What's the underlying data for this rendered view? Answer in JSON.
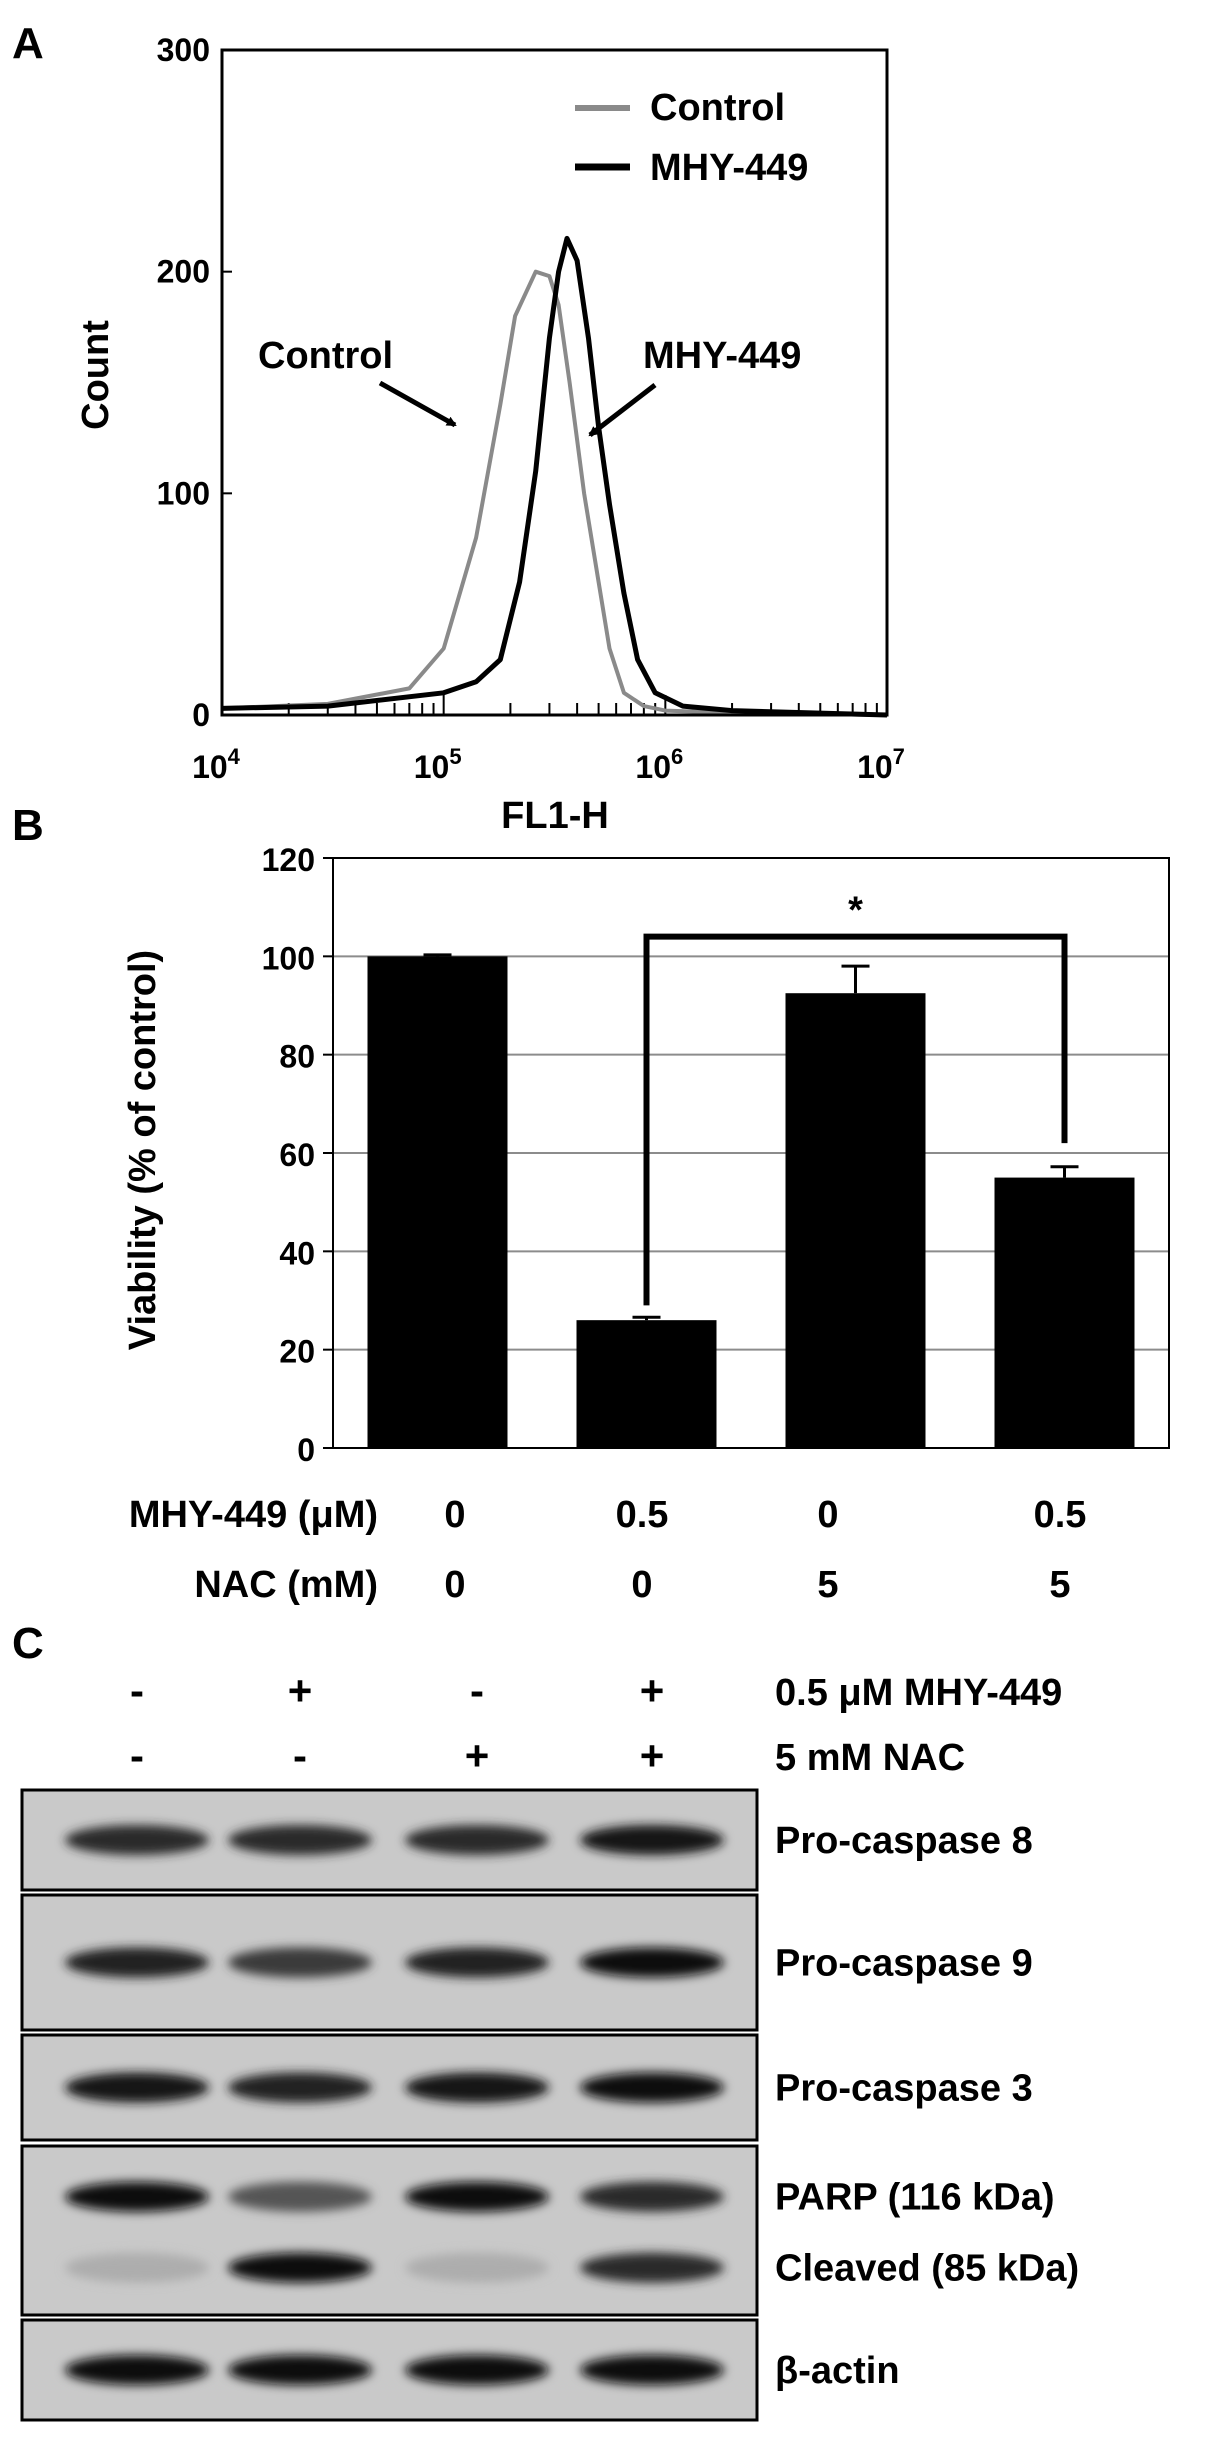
{
  "panels": {
    "a": {
      "letter": "A"
    },
    "b": {
      "letter": "B"
    },
    "c": {
      "letter": "C"
    }
  },
  "chart_data": [
    {
      "type": "line",
      "xlabel": "FL1-H",
      "ylabel": "Count",
      "x_scale": "log",
      "xlim": [
        10000,
        10000000
      ],
      "ylim": [
        0,
        300
      ],
      "x_ticks": [
        {
          "base": "10",
          "exp": "4"
        },
        {
          "base": "10",
          "exp": "5"
        },
        {
          "base": "10",
          "exp": "6"
        },
        {
          "base": "10",
          "exp": "7"
        }
      ],
      "y_ticks": [
        "0",
        "100",
        "200",
        "300"
      ],
      "legend_position": "top-right",
      "series": [
        {
          "name": "Control",
          "color": "#8a8a8a",
          "x": [
            10000,
            30000,
            70000,
            100000,
            140000,
            180000,
            210000,
            260000,
            300000,
            330000,
            370000,
            430000,
            500000,
            560000,
            650000,
            800000,
            1000000,
            2000000,
            10000000
          ],
          "y": [
            3,
            5,
            12,
            30,
            80,
            140,
            180,
            200,
            198,
            185,
            150,
            100,
            60,
            30,
            10,
            4,
            2,
            1,
            0
          ]
        },
        {
          "name": "MHY-449",
          "color": "#000000",
          "x": [
            10000,
            30000,
            100000,
            140000,
            180000,
            220000,
            260000,
            300000,
            330000,
            360000,
            400000,
            450000,
            500000,
            560000,
            650000,
            750000,
            900000,
            1200000,
            2000000,
            10000000
          ],
          "y": [
            3,
            4,
            10,
            15,
            25,
            60,
            110,
            170,
            200,
            215,
            205,
            170,
            130,
            95,
            55,
            25,
            10,
            4,
            2,
            0
          ]
        }
      ],
      "annotations": [
        {
          "text": "Control",
          "target": "Control"
        },
        {
          "text": "MHY-449",
          "target": "MHY-449"
        }
      ]
    },
    {
      "type": "bar",
      "ylabel": "Viability (% of control)",
      "ylim": [
        0,
        120
      ],
      "y_ticks": [
        "0",
        "20",
        "40",
        "60",
        "80",
        "100",
        "120"
      ],
      "grid": true,
      "bar_color": "#000000",
      "values": [
        100,
        26,
        92.5,
        55
      ],
      "errors": [
        0.3,
        0.6,
        5.5,
        2.2
      ],
      "rows": [
        {
          "label": "MHY-449 (μM)",
          "cells": [
            "0",
            "0.5",
            "0",
            "0.5"
          ]
        },
        {
          "label": "NAC (mM)",
          "cells": [
            "0",
            "0",
            "5",
            "5"
          ]
        }
      ],
      "significance": {
        "from_bar": 1,
        "to_bar": 3,
        "label": "*"
      }
    }
  ],
  "blot": {
    "treatment_rows": [
      {
        "label": "0.5 μM MHY-449",
        "signs": [
          "-",
          "+",
          "-",
          "+"
        ]
      },
      {
        "label": "5 mM NAC",
        "signs": [
          "-",
          "-",
          "+",
          "+"
        ]
      }
    ],
    "strips": [
      {
        "labels": [
          "Pro-caspase 8"
        ],
        "bands": [
          [
            0.85,
            0.85,
            0.85,
            0.95
          ]
        ]
      },
      {
        "labels": [
          "Pro-caspase 9"
        ],
        "bands": [
          [
            0.9,
            0.75,
            0.9,
            1.0
          ]
        ]
      },
      {
        "labels": [
          "Pro-caspase 3"
        ],
        "bands": [
          [
            0.95,
            0.9,
            0.95,
            1.0
          ]
        ]
      },
      {
        "labels": [
          "PARP (116 kDa)",
          "Cleaved (85 kDa)"
        ],
        "bands": [
          [
            1.0,
            0.6,
            1.0,
            0.85
          ],
          [
            0.1,
            1.0,
            0.1,
            0.85
          ]
        ]
      },
      {
        "labels": [
          "β-actin"
        ],
        "bands": [
          [
            1.0,
            1.0,
            1.0,
            1.0
          ]
        ]
      }
    ]
  }
}
